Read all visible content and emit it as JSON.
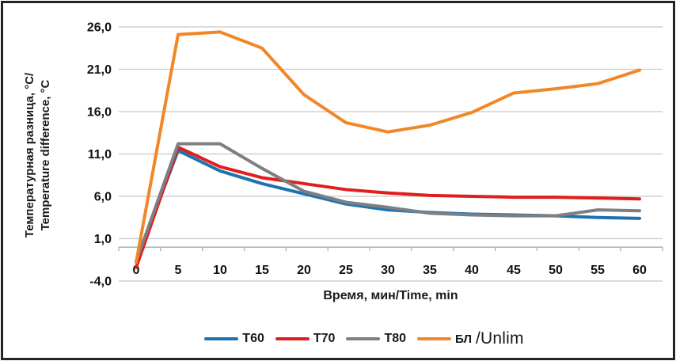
{
  "chart_data": {
    "type": "line",
    "title": "",
    "x": [
      0,
      5,
      10,
      15,
      20,
      25,
      30,
      35,
      40,
      45,
      50,
      55,
      60
    ],
    "x_tick_labels": [
      "0",
      "5",
      "10",
      "15",
      "20",
      "25",
      "30",
      "35",
      "40",
      "45",
      "50",
      "55",
      "60"
    ],
    "y_tick_labels": [
      "-4,0",
      "1,0",
      "6,0",
      "11,0",
      "16,0",
      "21,0",
      "26,0"
    ],
    "ylim": [
      -4,
      26
    ],
    "gridline_step": 5,
    "grid": true,
    "xlabel": "Время, мин/Time, min",
    "ylabel": "Температурная разница, °C/ Temperature difference, °C",
    "ylabel_line1": "Температурная разница, °C/",
    "ylabel_line2": "Temperature difference, °C",
    "legend_position": "bottom",
    "series": [
      {
        "name": "T60",
        "color": "#1E73AF",
        "values": [
          -1.7,
          11.4,
          9.0,
          7.5,
          6.3,
          5.1,
          4.4,
          4.1,
          3.9,
          3.8,
          3.7,
          3.5,
          3.4
        ]
      },
      {
        "name": "T70",
        "color": "#E11E1E",
        "values": [
          -2.4,
          11.8,
          9.5,
          8.2,
          7.5,
          6.8,
          6.4,
          6.1,
          6.0,
          5.9,
          5.9,
          5.8,
          5.7
        ]
      },
      {
        "name": "T80",
        "color": "#7D8083",
        "values": [
          -1.7,
          12.2,
          12.2,
          9.3,
          6.6,
          5.3,
          4.7,
          4.0,
          3.8,
          3.7,
          3.7,
          4.4,
          4.3
        ]
      },
      {
        "name": "БЛ/Unlim",
        "color": "#F08728",
        "values": [
          -1.8,
          25.1,
          25.4,
          23.5,
          18.0,
          14.7,
          13.6,
          14.4,
          15.9,
          18.2,
          18.7,
          19.3,
          20.9
        ]
      }
    ],
    "colors": {
      "gridline": "#C8C8C8",
      "axis": "#A8A8A8",
      "text": "#111111",
      "background": "#FFFFFF",
      "frame_border": "#242424"
    }
  },
  "legend": {
    "bl_small": "БЛ",
    "bl_large": "/Unlim"
  }
}
